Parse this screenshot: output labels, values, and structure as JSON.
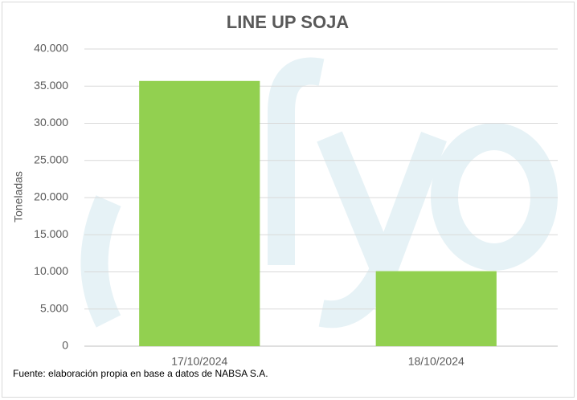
{
  "chart_data": {
    "type": "bar",
    "title": "LINE UP SOJA",
    "y_label": "Toneladas",
    "source": "Fuente: elaboración propia en base a datos de NABSA S.A.",
    "categories": [
      "17/10/2024",
      "18/10/2024"
    ],
    "values": [
      35700,
      10100
    ],
    "color": "#92d050",
    "ylim": [
      0,
      40000
    ],
    "yticks": [
      0,
      {
        "value": 5000,
        "label": "5.000"
      },
      {
        "value": 10000,
        "label": "10.000"
      },
      {
        "value": 15000,
        "label": "15.000"
      },
      {
        "value": 20000,
        "label": "20.000"
      },
      {
        "value": 25000,
        "label": "25.000"
      },
      {
        "value": 30000,
        "label": "30.000"
      },
      {
        "value": 35000,
        "label": "35.000"
      },
      {
        "value": 40000,
        "label": "40.000"
      }
    ],
    "grid": true
  }
}
